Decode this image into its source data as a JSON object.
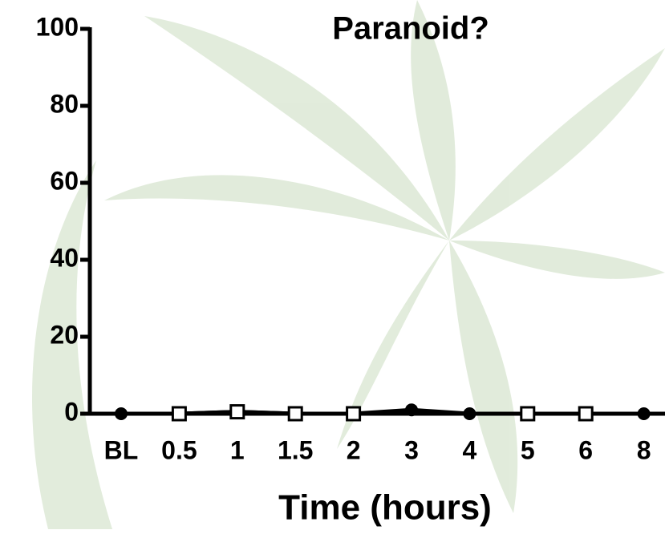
{
  "chart_data": {
    "type": "line",
    "title": "Paranoid?",
    "x_label": "Time (hours)",
    "categories": [
      "BL",
      "0.5",
      "1",
      "1.5",
      "2",
      "3",
      "4",
      "5",
      "6",
      "8"
    ],
    "series": [
      {
        "color": "#000000",
        "marker": "circle",
        "values": [
          0,
          0,
          0.5,
          0,
          0,
          1,
          0,
          0,
          0,
          0
        ]
      },
      {
        "color": "#000000",
        "marker": "square",
        "values": [
          null,
          0,
          0.5,
          0,
          0,
          null,
          null,
          0,
          0,
          null
        ]
      }
    ],
    "ylim": [
      0,
      100
    ],
    "yticks": [
      0,
      20,
      40,
      60,
      80,
      100
    ],
    "grid": false
  }
}
